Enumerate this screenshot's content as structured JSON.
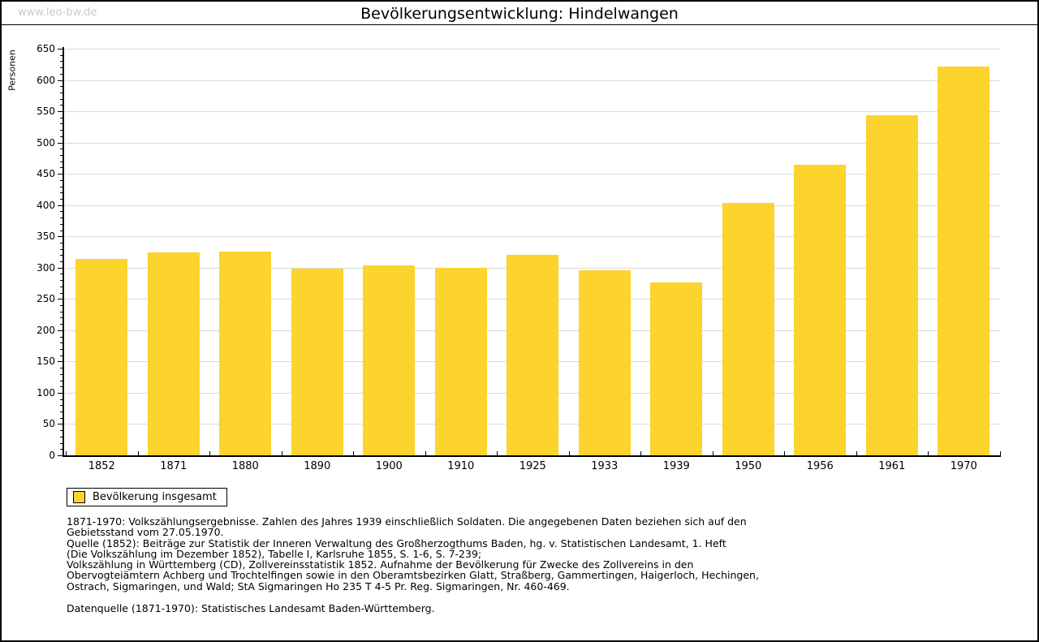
{
  "page": {
    "watermark": "www.leo-bw.de",
    "title": "Bevölkerungsentwicklung: Hindelwangen"
  },
  "chart_data": {
    "type": "bar",
    "title": "Bevölkerungsentwicklung: Hindelwangen",
    "xlabel": "",
    "ylabel": "Personen",
    "ylim": [
      0,
      650
    ],
    "ytick_step": 50,
    "y_minor_tick_step": 10,
    "grid": true,
    "legend_position": "bottom-left",
    "bar_color": "#FDD32D",
    "grid_color": "#d9d9d9",
    "categories": [
      "1852",
      "1871",
      "1880",
      "1890",
      "1900",
      "1910",
      "1925",
      "1933",
      "1939",
      "1950",
      "1956",
      "1961",
      "1970"
    ],
    "series": [
      {
        "name": "Bevölkerung insgesamt",
        "values": [
          314,
          325,
          326,
          299,
          304,
          300,
          320,
          296,
          276,
          404,
          465,
          544,
          621
        ]
      }
    ],
    "legend": [
      {
        "label": "Bevölkerung insgesamt",
        "color": "#FDD32D"
      }
    ]
  },
  "footnotes": {
    "lines": [
      "1871-1970: Volkszählungsergebnisse. Zahlen des Jahres 1939 einschließlich Soldaten. Die angegebenen Daten beziehen sich auf den",
      "Gebietsstand vom 27.05.1970.",
      "Quelle (1852): Beiträge zur Statistik der Inneren Verwaltung des Großherzogthums Baden, hg. v. Statistischen Landesamt, 1. Heft",
      "(Die Volkszählung im Dezember 1852), Tabelle I, Karlsruhe 1855, S. 1-6, S. 7-239;",
      "Volkszählung in Württemberg (CD), Zollvereinsstatistik 1852. Aufnahme der Bevölkerung für Zwecke des Zollvereins in den",
      "Obervogteiämtern Achberg und Trochtelfingen sowie in den Oberamtsbezirken Glatt, Straßberg, Gammertingen, Haigerloch, Hechingen,",
      "Ostrach, Sigmaringen, und Wald; StA Sigmaringen Ho 235 T 4-5 Pr. Reg. Sigmaringen, Nr. 460-469."
    ],
    "datasource": "Datenquelle (1871-1970): Statistisches Landesamt Baden-Württemberg."
  }
}
